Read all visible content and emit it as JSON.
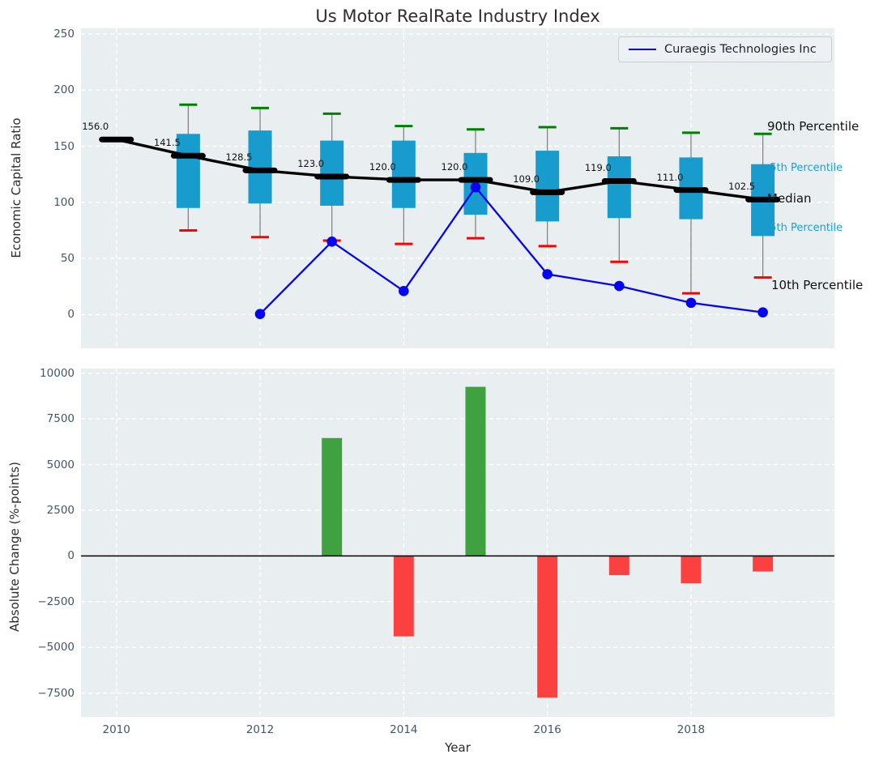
{
  "title": "Us Motor RealRate Industry Index",
  "legend": {
    "label": "Curaegis Technologies Inc"
  },
  "axes": {
    "top_ylabel": "Economic Capital Ratio",
    "bottom_ylabel": "Absolute Change (%-points)",
    "xlabel": "Year"
  },
  "end_labels": {
    "p90": "90th Percentile",
    "q3": "75th Percentile",
    "median": "Median",
    "q1": "25th Percentile",
    "p10": "10th Percentile"
  },
  "colors": {
    "box_fill": "#189bcd",
    "median_line": "#000000",
    "whisker": "#7d7d7d",
    "cap_high": "#008000",
    "cap_low": "#ff0000",
    "company_line": "#0404f0",
    "bar_positive": "#3fa13f",
    "bar_negative": "#fb4040",
    "plot_bg": "#e9eef0",
    "grid": "#ffffff",
    "tick_color": "#44546a",
    "end_label_quartile": "#1a9fd6"
  },
  "chart_data": [
    {
      "type": "boxplot+line",
      "title": "Us Motor RealRate Industry Index",
      "ylabel": "Economic Capital Ratio",
      "ylim": [
        -30,
        255
      ],
      "yticks": [
        0,
        50,
        100,
        150,
        200,
        250
      ],
      "xticks": [
        2010,
        2012,
        2014,
        2016,
        2018
      ],
      "grid": true,
      "legend_position": "upper right",
      "boxes": [
        {
          "year": 2010,
          "median": 156.0,
          "label": "156.0",
          "p10": null,
          "q1": null,
          "q3": null,
          "p90": null
        },
        {
          "year": 2011,
          "median": 141.5,
          "label": "141.5",
          "p10": 75,
          "q1": 95,
          "q3": 161,
          "p90": 187
        },
        {
          "year": 2012,
          "median": 128.5,
          "label": "128.5",
          "p10": 69,
          "q1": 99,
          "q3": 164,
          "p90": 184
        },
        {
          "year": 2013,
          "median": 123.0,
          "label": "123.0",
          "p10": 66,
          "q1": 97,
          "q3": 155,
          "p90": 179
        },
        {
          "year": 2014,
          "median": 120.0,
          "label": "120.0",
          "p10": 63,
          "q1": 95,
          "q3": 155,
          "p90": 168
        },
        {
          "year": 2015,
          "median": 120.0,
          "label": "120.0",
          "p10": 68,
          "q1": 89,
          "q3": 144,
          "p90": 165
        },
        {
          "year": 2016,
          "median": 109.0,
          "label": "109.0",
          "p10": 61,
          "q1": 83,
          "q3": 146,
          "p90": 167
        },
        {
          "year": 2017,
          "median": 119.0,
          "label": "119.0",
          "p10": 47,
          "q1": 86,
          "q3": 141,
          "p90": 166
        },
        {
          "year": 2018,
          "median": 111.0,
          "label": "111.0",
          "p10": 19,
          "q1": 85,
          "q3": 140,
          "p90": 162
        },
        {
          "year": 2019,
          "median": 102.5,
          "label": "102.5",
          "p10": 33,
          "q1": 70,
          "q3": 134,
          "p90": 161
        }
      ],
      "series": [
        {
          "name": "Curaegis Technologies Inc",
          "x": [
            2012,
            2013,
            2014,
            2015,
            2016,
            2017,
            2018,
            2019
          ],
          "values": [
            0.5,
            65,
            21,
            113.5,
            36,
            25.5,
            10.5,
            2
          ]
        }
      ]
    },
    {
      "type": "bar",
      "ylabel": "Absolute Change (%-points)",
      "xlabel": "Year",
      "ylim": [
        -8800,
        10250
      ],
      "yticks": [
        -7500,
        -5000,
        -2500,
        0,
        2500,
        5000,
        7500,
        10000
      ],
      "xticks": [
        2010,
        2012,
        2014,
        2016,
        2018
      ],
      "grid": true,
      "x": [
        2013,
        2014,
        2015,
        2016,
        2017,
        2018,
        2019
      ],
      "values": [
        6450,
        -4400,
        9250,
        -7750,
        -1050,
        -1500,
        -850
      ]
    }
  ]
}
